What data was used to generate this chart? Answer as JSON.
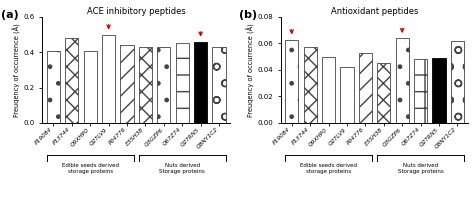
{
  "categories": [
    "P19084",
    "P13744",
    "Q9XHP0",
    "Q2TLV9",
    "P04776",
    "E3SH38",
    "Q3GZP6",
    "Q67Z74",
    "Q2TRN5",
    "Q8NY1C2"
  ],
  "ace_values": [
    0.41,
    0.48,
    0.41,
    0.5,
    0.44,
    0.43,
    0.43,
    0.45,
    0.46,
    0.43
  ],
  "antioxidant_values": [
    0.063,
    0.057,
    0.05,
    0.042,
    0.053,
    0.045,
    0.064,
    0.048,
    0.049,
    0.062
  ],
  "ace_arrows": [
    3,
    8
  ],
  "antioxidant_arrows": [
    0,
    6
  ],
  "ace_ylim": [
    0.0,
    0.6
  ],
  "ace_yticks": [
    0.0,
    0.2,
    0.4,
    0.6
  ],
  "antioxidant_ylim": [
    0.0,
    0.08
  ],
  "antioxidant_yticks": [
    0.0,
    0.02,
    0.04,
    0.06,
    0.08
  ],
  "title_a": "ACE inhibitory peptides",
  "title_b": "Antioxidant peptides",
  "ylabel": "Freuqency of occurrence (Å)",
  "label_a": "(a)",
  "label_b": "(b)",
  "edible_label": "Edible seeds derived\nstorage proteins",
  "nuts_label": "Nuts derived\nStorage proteins",
  "arrow_color": "#cc0000"
}
